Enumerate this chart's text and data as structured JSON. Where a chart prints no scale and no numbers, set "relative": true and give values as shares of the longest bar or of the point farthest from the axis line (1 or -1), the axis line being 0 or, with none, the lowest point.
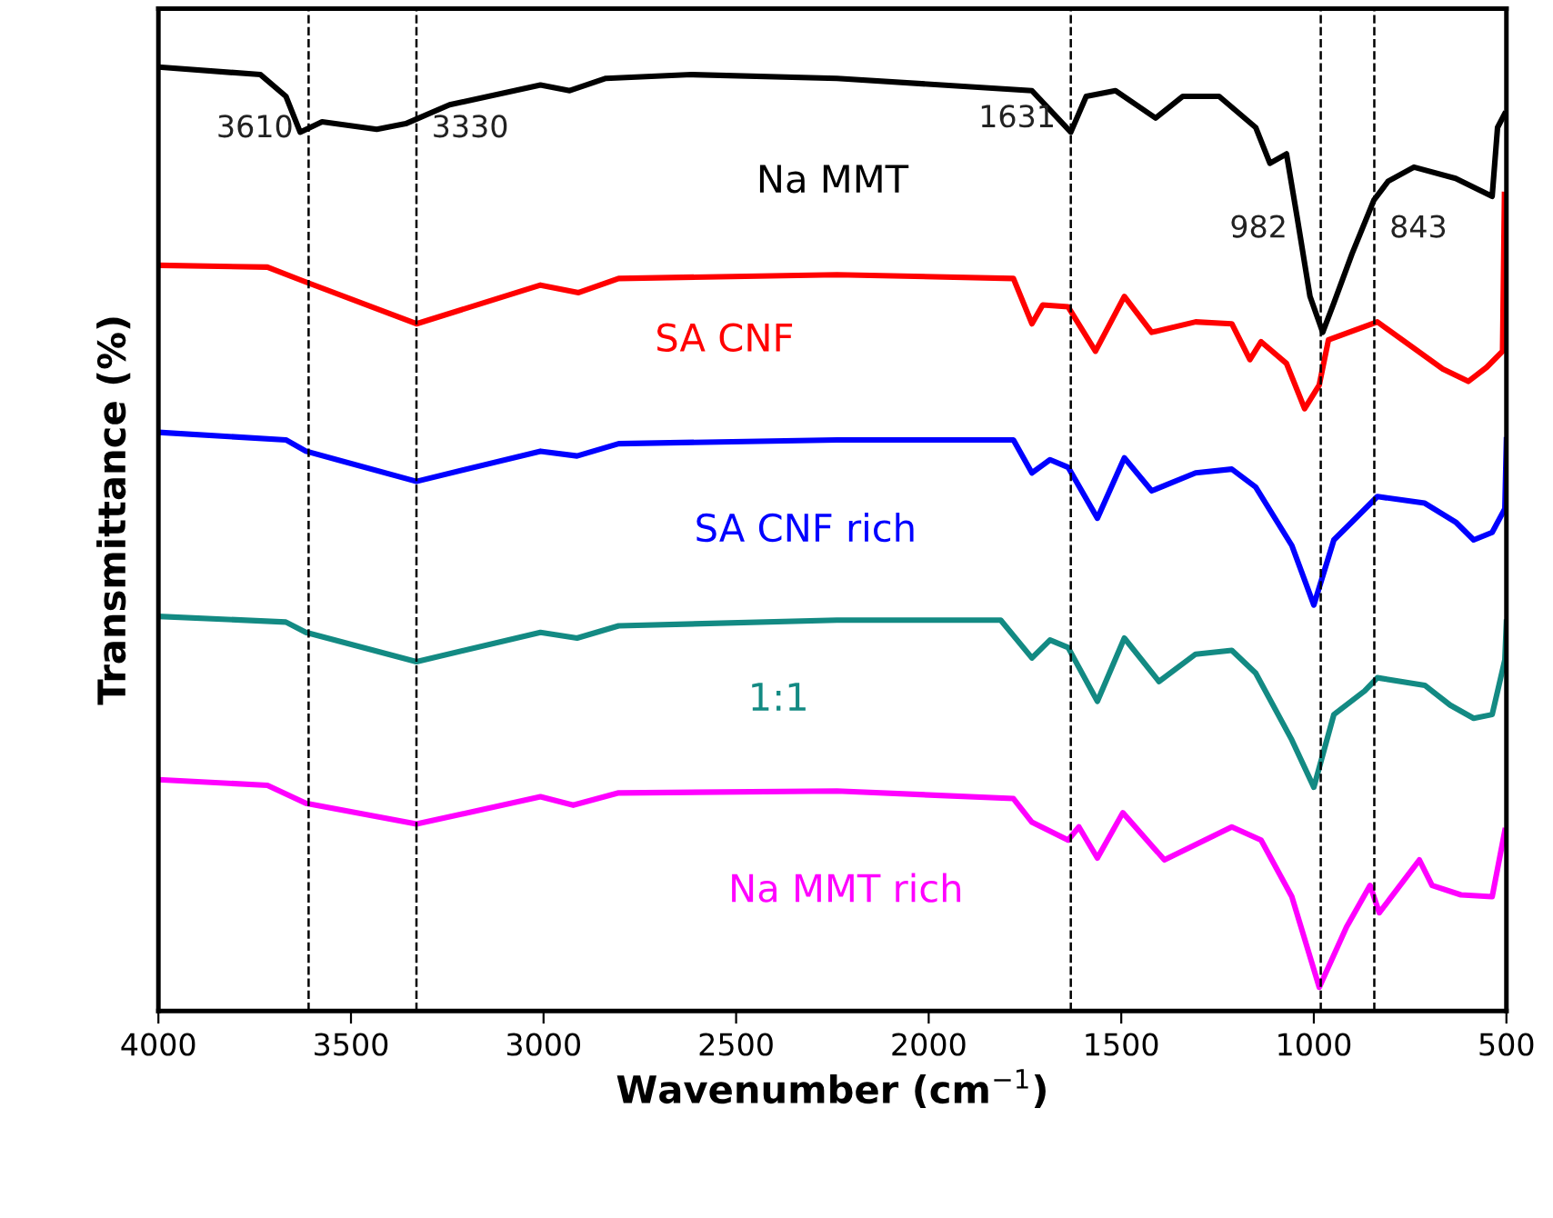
{
  "chart_data": {
    "type": "line",
    "relative": true,
    "xlabel": "Wavenumber (cm$^{−1}$)",
    "ylabel": "Transmittance (%)",
    "xlim": [
      4000,
      500
    ],
    "xticks": [
      4000,
      3500,
      3000,
      2500,
      2000,
      1500,
      1000,
      500
    ],
    "tick_labels": "x",
    "grid": false,
    "legend": false,
    "marker": "none",
    "line_style": "solid",
    "ref_lines": [
      {
        "axis": "x",
        "value": 3610,
        "label": "3610",
        "line_style": "dashed",
        "color": "#000000"
      },
      {
        "axis": "x",
        "value": 3330,
        "label": "3330",
        "line_style": "dashed",
        "color": "#000000"
      },
      {
        "axis": "x",
        "value": 1631,
        "label": "1631",
        "line_style": "dashed",
        "color": "#000000"
      },
      {
        "axis": "x",
        "value": 982,
        "label": "982",
        "line_style": "dashed",
        "color": "#000000"
      },
      {
        "axis": "x",
        "value": 843,
        "label": "843",
        "line_style": "dashed",
        "color": "#000000"
      }
    ],
    "series": [
      {
        "name": "Na MMT",
        "color": "#000000",
        "x": [
          4000,
          3735,
          3669,
          3632,
          3575,
          3433,
          3358,
          3244,
          3008,
          2932,
          2838,
          2616,
          2238,
          1732,
          1631,
          1591,
          1515,
          1411,
          1340,
          1246,
          1151,
          1114,
          1071,
          1043,
          1010,
          977,
          948,
          901,
          844,
          807,
          740,
          632,
          537,
          523,
          505
        ],
        "values": [
          1.0,
          0.992,
          0.969,
          0.931,
          0.942,
          0.934,
          0.94,
          0.96,
          0.981,
          0.975,
          0.988,
          0.992,
          0.988,
          0.975,
          0.931,
          0.969,
          0.975,
          0.946,
          0.969,
          0.969,
          0.936,
          0.898,
          0.908,
          0.84,
          0.757,
          0.719,
          0.75,
          0.802,
          0.859,
          0.879,
          0.894,
          0.882,
          0.863,
          0.936,
          0.95
        ]
      },
      {
        "name": "SA CNF",
        "color": "#ff0000",
        "x": [
          4000,
          3717,
          3622,
          3330,
          3008,
          2909,
          2805,
          2238,
          1780,
          1732,
          1704,
          1638,
          1567,
          1492,
          1421,
          1307,
          1213,
          1166,
          1137,
          1071,
          1024,
          986,
          962,
          835,
          665,
          599,
          551,
          510,
          505
        ],
        "values": [
          0.79,
          0.788,
          0.773,
          0.728,
          0.769,
          0.761,
          0.776,
          0.78,
          0.776,
          0.728,
          0.748,
          0.746,
          0.699,
          0.757,
          0.719,
          0.73,
          0.728,
          0.69,
          0.709,
          0.686,
          0.638,
          0.663,
          0.711,
          0.73,
          0.68,
          0.667,
          0.682,
          0.699,
          0.865
        ]
      },
      {
        "name": "SA CNF rich",
        "color": "#0000ff",
        "x": [
          4000,
          3669,
          3617,
          3330,
          3008,
          2913,
          2805,
          2238,
          1780,
          1732,
          1685,
          1638,
          1562,
          1492,
          1421,
          1307,
          1213,
          1151,
          1057,
          1000,
          948,
          901,
          835,
          712,
          632,
          585,
          537,
          504,
          500
        ],
        "values": [
          0.613,
          0.605,
          0.593,
          0.561,
          0.593,
          0.588,
          0.601,
          0.605,
          0.605,
          0.57,
          0.584,
          0.576,
          0.522,
          0.586,
          0.551,
          0.57,
          0.574,
          0.555,
          0.493,
          0.43,
          0.499,
          0.518,
          0.545,
          0.538,
          0.518,
          0.499,
          0.507,
          0.532,
          0.605
        ]
      },
      {
        "name": "1:1",
        "color": "#138a83",
        "x": [
          4000,
          3669,
          3617,
          3330,
          3008,
          2913,
          2805,
          2238,
          1813,
          1732,
          1685,
          1638,
          1562,
          1492,
          1402,
          1307,
          1213,
          1151,
          1057,
          1000,
          948,
          868,
          835,
          712,
          646,
          585,
          537,
          504,
          500
        ],
        "values": [
          0.418,
          0.412,
          0.401,
          0.37,
          0.401,
          0.395,
          0.408,
          0.414,
          0.414,
          0.374,
          0.393,
          0.385,
          0.328,
          0.395,
          0.349,
          0.378,
          0.382,
          0.358,
          0.287,
          0.237,
          0.314,
          0.339,
          0.353,
          0.345,
          0.324,
          0.31,
          0.314,
          0.372,
          0.412
        ]
      },
      {
        "name": "Na MMT rich",
        "color": "#ff00ff",
        "x": [
          4000,
          3717,
          3617,
          3330,
          3008,
          2923,
          2805,
          2238,
          1780,
          1732,
          1638,
          1610,
          1562,
          1496,
          1388,
          1213,
          1137,
          1057,
          986,
          915,
          854,
          830,
          726,
          693,
          618,
          537,
          504
        ],
        "values": [
          0.245,
          0.239,
          0.22,
          0.198,
          0.227,
          0.218,
          0.231,
          0.233,
          0.225,
          0.2,
          0.181,
          0.195,
          0.162,
          0.21,
          0.16,
          0.195,
          0.181,
          0.121,
          0.025,
          0.089,
          0.133,
          0.104,
          0.16,
          0.133,
          0.123,
          0.121,
          0.191
        ]
      }
    ]
  }
}
